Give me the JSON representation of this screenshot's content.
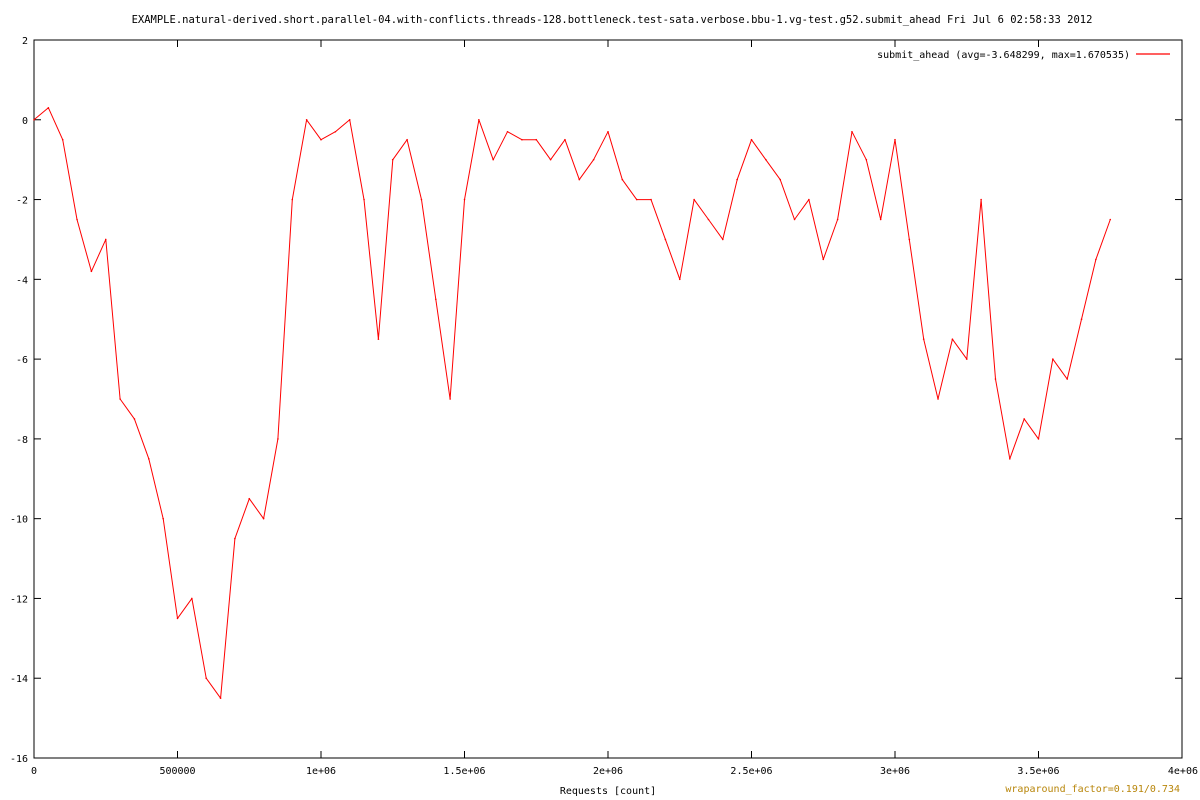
{
  "chart_data": {
    "type": "line",
    "title": "EXAMPLE.natural-derived.short.parallel-04.with-conflicts.threads-128.bottleneck.test-sata.verbose.bbu-1.vg-test.g52.submit_ahead Fri Jul  6 02:58:33 2012",
    "xlabel": "Requests [count]",
    "ylabel": "",
    "xlim": [
      0,
      4000000
    ],
    "ylim": [
      -16,
      2
    ],
    "x_ticks": [
      0,
      500000,
      1000000,
      1500000,
      2000000,
      2500000,
      3000000,
      3500000,
      4000000
    ],
    "x_tick_labels": [
      "0",
      "500000",
      "1e+06",
      "1.5e+06",
      "2e+06",
      "2.5e+06",
      "3e+06",
      "3.5e+06",
      "4e+06"
    ],
    "y_ticks": [
      2,
      0,
      -2,
      -4,
      -6,
      -8,
      -10,
      -12,
      -14,
      -16
    ],
    "y_tick_labels": [
      "2",
      "0",
      "-2",
      "-4",
      "-6",
      "-8",
      "-10",
      "-12",
      "-14",
      "-16"
    ],
    "grid": false,
    "legend_position": "top-right",
    "series": [
      {
        "name": "submit_ahead",
        "legend_label": "submit_ahead  (avg=-3.648299, max=1.670535)",
        "color": "#ff0000",
        "x": [
          0,
          50000,
          100000,
          150000,
          200000,
          250000,
          300000,
          350000,
          400000,
          450000,
          500000,
          550000,
          600000,
          650000,
          700000,
          750000,
          800000,
          850000,
          900000,
          950000,
          1000000,
          1050000,
          1100000,
          1150000,
          1200000,
          1250000,
          1300000,
          1350000,
          1400000,
          1450000,
          1500000,
          1550000,
          1600000,
          1650000,
          1700000,
          1750000,
          1800000,
          1850000,
          1900000,
          1950000,
          2000000,
          2050000,
          2100000,
          2150000,
          2200000,
          2250000,
          2300000,
          2350000,
          2400000,
          2450000,
          2500000,
          2550000,
          2600000,
          2650000,
          2700000,
          2750000,
          2800000,
          2850000,
          2900000,
          2950000,
          3000000,
          3050000,
          3100000,
          3150000,
          3200000,
          3250000,
          3300000,
          3350000,
          3400000,
          3450000,
          3500000,
          3550000,
          3600000,
          3650000,
          3700000,
          3750000
        ],
        "y": [
          0.0,
          0.3,
          -0.5,
          -2.5,
          -3.8,
          -3.0,
          -7.0,
          -7.5,
          -8.5,
          -10.0,
          -12.5,
          -12.0,
          -14.0,
          -14.5,
          -10.5,
          -9.5,
          -10.0,
          -8.0,
          -2.0,
          0.0,
          -0.5,
          -0.3,
          0.0,
          -2.0,
          -5.5,
          -1.0,
          -0.5,
          -2.0,
          -4.5,
          -7.0,
          -2.0,
          0.0,
          -1.0,
          -0.3,
          -0.5,
          -0.5,
          -1.0,
          -0.5,
          -1.5,
          -1.0,
          -0.3,
          -1.5,
          -2.0,
          -2.0,
          -3.0,
          -4.0,
          -2.0,
          -2.5,
          -3.0,
          -1.5,
          -0.5,
          -1.0,
          -1.5,
          -2.5,
          -2.0,
          -3.5,
          -2.5,
          -0.3,
          -1.0,
          -2.5,
          -0.5,
          -3.0,
          -5.5,
          -7.0,
          -5.5,
          -6.0,
          -2.0,
          -6.5,
          -8.5,
          -7.5,
          -8.0,
          -6.0,
          -6.5,
          -5.0,
          -3.5,
          -2.5
        ]
      }
    ],
    "footnote": "wraparound_factor=0.191/0.734"
  }
}
